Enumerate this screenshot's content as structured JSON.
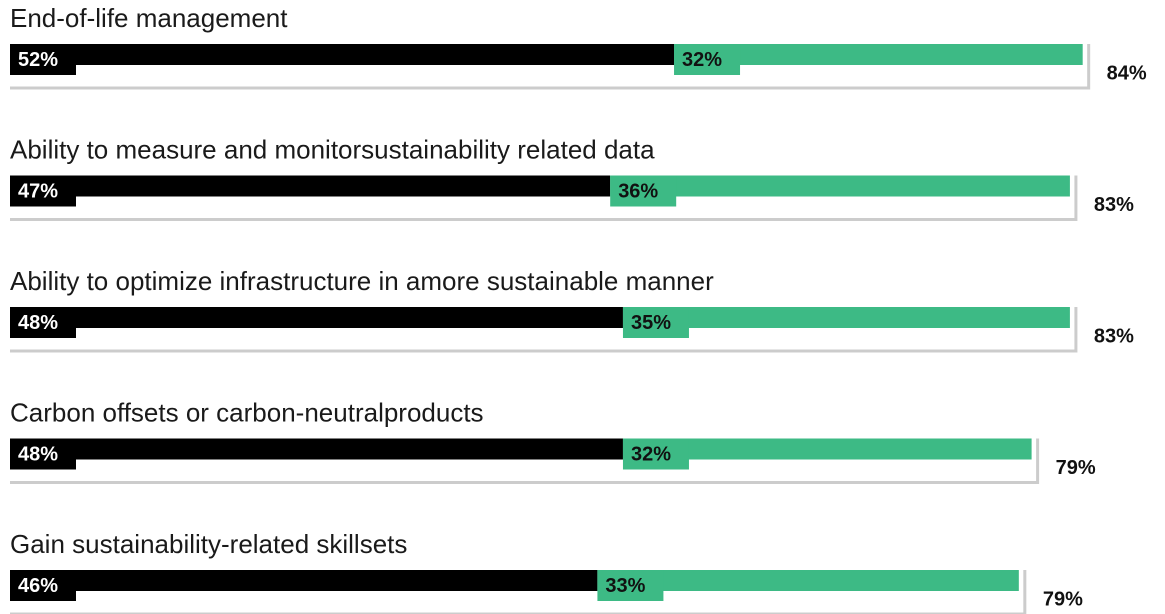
{
  "chart_data": {
    "type": "stacked-bar",
    "categories": [
      "End-of-life management",
      "Ability to measure and monitorsustainability related data",
      "Ability to optimize infrastructure in amore sustainable manner",
      "Carbon offsets or carbon-neutralproducts",
      "Gain sustainability-related skillsets"
    ],
    "series": [
      {
        "color": "#000000",
        "label_color": "#ffffff",
        "values": [
          52,
          47,
          48,
          48,
          46
        ],
        "value_labels": [
          "52%",
          "47%",
          "48%",
          "48%",
          "46%"
        ]
      },
      {
        "color": "#3dba85",
        "label_color": "#111111",
        "values": [
          32,
          36,
          35,
          32,
          33
        ],
        "value_labels": [
          "32%",
          "36%",
          "35%",
          "32%",
          "33%"
        ]
      }
    ],
    "totals": {
      "values": [
        84,
        83,
        83,
        79,
        79
      ],
      "value_labels": [
        "84%",
        "83%",
        "83%",
        "79%",
        "79%"
      ]
    }
  }
}
